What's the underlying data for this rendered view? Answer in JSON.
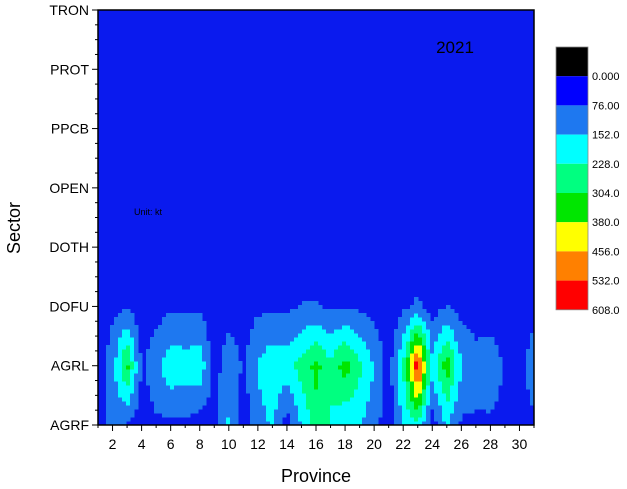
{
  "chart_data": {
    "type": "heatmap",
    "title": "2021",
    "annotation": "Unit: kt",
    "xlabel": "Province",
    "ylabel": "Sector",
    "x_ticks": [
      2,
      4,
      6,
      8,
      10,
      12,
      14,
      16,
      18,
      20,
      22,
      24,
      26,
      28,
      30
    ],
    "xlim": [
      1,
      31
    ],
    "y_categories": [
      "AGRF",
      "AGRL",
      "DOFU",
      "DOTH",
      "OPEN",
      "PPCB",
      "PROT",
      "TRON"
    ],
    "legend": {
      "labels": [
        "0.000",
        "76.00",
        "152.0",
        "228.0",
        "304.0",
        "380.0",
        "456.0",
        "532.0",
        "608.0"
      ],
      "colors": [
        "#000000",
        "#0000ff",
        "#1e78f0",
        "#00ffff",
        "#00ff80",
        "#00e600",
        "#ffff00",
        "#ff8000",
        "#ff0000"
      ]
    },
    "background_color": "#0a1aee",
    "provinces": [
      1,
      2,
      3,
      4,
      5,
      6,
      7,
      8,
      9,
      10,
      11,
      12,
      13,
      14,
      15,
      16,
      17,
      18,
      19,
      20,
      21,
      22,
      23,
      24,
      25,
      26,
      27,
      28,
      29,
      30,
      31
    ],
    "series": [
      {
        "name": "AGRF",
        "values": [
          20,
          120,
          60,
          30,
          60,
          60,
          60,
          30,
          60,
          160,
          30,
          120,
          160,
          30,
          160,
          260,
          220,
          160,
          160,
          100,
          30,
          160,
          220,
          30,
          160,
          60,
          60,
          60,
          60,
          20,
          60
        ]
      },
      {
        "name": "AGRL",
        "values": [
          30,
          120,
          330,
          60,
          130,
          210,
          190,
          210,
          30,
          140,
          60,
          160,
          210,
          200,
          260,
          330,
          250,
          340,
          250,
          150,
          40,
          230,
          600,
          180,
          350,
          160,
          120,
          130,
          60,
          30,
          140
        ]
      },
      {
        "name": "DOFU",
        "values": [
          20,
          60,
          60,
          30,
          40,
          60,
          60,
          60,
          20,
          30,
          40,
          60,
          60,
          60,
          80,
          80,
          60,
          70,
          60,
          40,
          20,
          60,
          90,
          40,
          80,
          40,
          20,
          20,
          20,
          20,
          40
        ]
      },
      {
        "name": "DOTH",
        "values": [
          20,
          20,
          20,
          20,
          20,
          20,
          20,
          20,
          20,
          20,
          20,
          20,
          20,
          20,
          20,
          20,
          20,
          20,
          20,
          20,
          20,
          20,
          20,
          20,
          20,
          20,
          20,
          20,
          20,
          20,
          20
        ]
      },
      {
        "name": "OPEN",
        "values": [
          20,
          20,
          20,
          20,
          20,
          20,
          20,
          20,
          20,
          20,
          20,
          20,
          20,
          20,
          20,
          20,
          20,
          20,
          20,
          20,
          20,
          20,
          20,
          20,
          20,
          20,
          20,
          20,
          20,
          20,
          20
        ]
      },
      {
        "name": "PPCB",
        "values": [
          20,
          20,
          20,
          20,
          20,
          20,
          20,
          20,
          20,
          20,
          20,
          20,
          20,
          20,
          20,
          20,
          20,
          20,
          20,
          20,
          20,
          20,
          20,
          20,
          20,
          20,
          20,
          20,
          20,
          20,
          20
        ]
      },
      {
        "name": "PROT",
        "values": [
          20,
          20,
          20,
          20,
          20,
          20,
          20,
          20,
          20,
          20,
          20,
          20,
          20,
          20,
          20,
          20,
          20,
          20,
          20,
          20,
          20,
          20,
          20,
          20,
          20,
          20,
          20,
          20,
          20,
          20,
          20
        ]
      },
      {
        "name": "TRON",
        "values": [
          20,
          20,
          20,
          20,
          20,
          20,
          20,
          20,
          20,
          20,
          20,
          20,
          20,
          20,
          20,
          20,
          20,
          20,
          20,
          20,
          20,
          20,
          20,
          20,
          20,
          20,
          20,
          20,
          20,
          20,
          20
        ]
      }
    ]
  }
}
